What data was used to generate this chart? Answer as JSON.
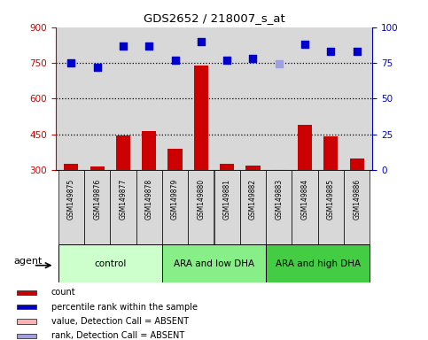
{
  "title": "GDS2652 / 218007_s_at",
  "samples": [
    "GSM149875",
    "GSM149876",
    "GSM149877",
    "GSM149878",
    "GSM149879",
    "GSM149880",
    "GSM149881",
    "GSM149882",
    "GSM149883",
    "GSM149884",
    "GSM149885",
    "GSM149886"
  ],
  "bar_values": [
    325,
    315,
    445,
    465,
    390,
    740,
    325,
    320,
    305,
    490,
    440,
    350
  ],
  "bar_colors": [
    "#cc0000",
    "#cc0000",
    "#cc0000",
    "#cc0000",
    "#cc0000",
    "#cc0000",
    "#cc0000",
    "#cc0000",
    "#ffb0b0",
    "#cc0000",
    "#cc0000",
    "#cc0000"
  ],
  "scatter_values": [
    750,
    730,
    820,
    820,
    760,
    840,
    760,
    768,
    745,
    830,
    800,
    800
  ],
  "scatter_colors": [
    "#0000cc",
    "#0000cc",
    "#0000cc",
    "#0000cc",
    "#0000cc",
    "#0000cc",
    "#0000cc",
    "#0000cc",
    "#a0a0e0",
    "#0000cc",
    "#0000cc",
    "#0000cc"
  ],
  "groups": [
    {
      "label": "control",
      "start": 0,
      "end": 3,
      "color": "#ccffcc"
    },
    {
      "label": "ARA and low DHA",
      "start": 4,
      "end": 7,
      "color": "#88ee88"
    },
    {
      "label": "ARA and high DHA",
      "start": 8,
      "end": 11,
      "color": "#44cc44"
    }
  ],
  "ylim_left": [
    300,
    900
  ],
  "ylim_right": [
    0,
    100
  ],
  "yticks_left": [
    300,
    450,
    600,
    750,
    900
  ],
  "yticks_right": [
    0,
    25,
    50,
    75,
    100
  ],
  "hlines": [
    450,
    600,
    750
  ],
  "left_axis_color": "#cc0000",
  "right_axis_color": "#0000cc",
  "background_color": "#ffffff",
  "plot_bg_color": "#d8d8d8",
  "agent_label": "agent",
  "legend_items": [
    {
      "color": "#cc0000",
      "label": "count"
    },
    {
      "color": "#0000cc",
      "label": "percentile rank within the sample"
    },
    {
      "color": "#ffb0b0",
      "label": "value, Detection Call = ABSENT"
    },
    {
      "color": "#a0a0e0",
      "label": "rank, Detection Call = ABSENT"
    }
  ]
}
